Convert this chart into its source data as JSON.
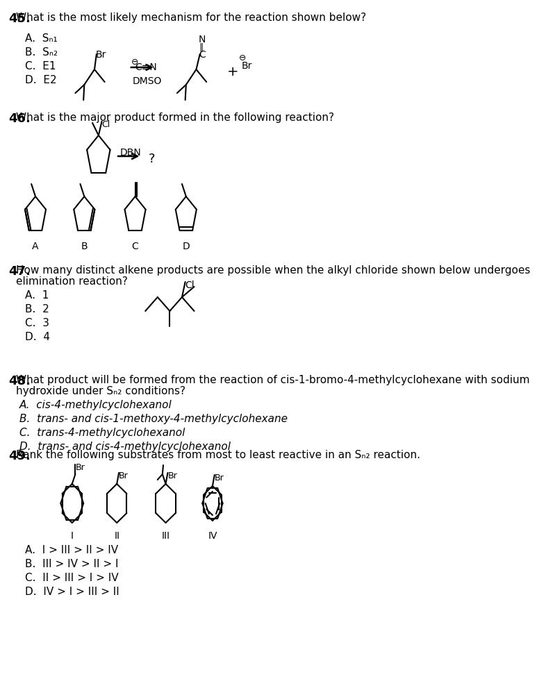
{
  "bg_color": "#ffffff",
  "q45_header": "What is the most likely mechanism for the reaction shown below?",
  "q45_num": "45",
  "q45_choices": [
    "A.  Sₙ₁",
    "B.  Sₙ₂",
    "C.  E1",
    "D.  E2"
  ],
  "q46_header": "What is the major product formed in the following reaction?",
  "q46_num": "46",
  "q46_answer_labels": [
    "A",
    "B",
    "C",
    "D"
  ],
  "q47_header1": "How many distinct alkene products are possible when the alkyl chloride shown below undergoes",
  "q47_header2": "elimination reaction?",
  "q47_num": "47",
  "q47_choices": [
    "A.  1",
    "B.  2",
    "C.  3",
    "D.  4"
  ],
  "q48_header1": "What product will be formed from the reaction of cis-1-bromo-4-methylcyclohexane with sodium",
  "q48_header2": "hydroxide under Sₙ₂ conditions?",
  "q48_num": "48",
  "q48_choices": [
    "A.  cis-4-methylcyclohexanol",
    "B.  trans- and cis-1-methoxy-4-methylcyclohexane",
    "C.  trans-4-methylcyclohexanol",
    "D.  trans- and cis-4-methylcyclohexanol"
  ],
  "q49_header": "Rank the following substrates from most to least reactive in an Sₙ₂ reaction.",
  "q49_num": "49",
  "q49_choices": [
    "A.  I > III > II > IV",
    "B.  III > IV > II > I",
    "C.  II > III > I > IV",
    "D.  IV > I > III > II"
  ]
}
